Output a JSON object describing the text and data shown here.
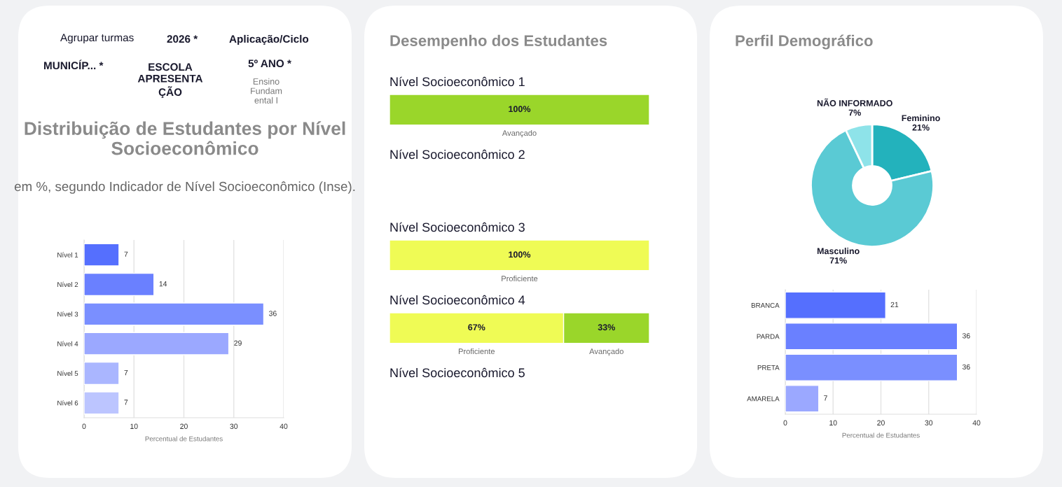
{
  "chart_data": [
    {
      "type": "bar",
      "orientation": "horizontal",
      "title": "Distribuição de Estudantes por Nível Socioeconômico",
      "subtitle": "em %, segundo Indicador de Nível Socioeconômico (Inse).",
      "xlabel": "Percentual de Estudantes",
      "categories": [
        "Nível 1",
        "Nível 2",
        "Nível 3",
        "Nível 4",
        "Nível 5",
        "Nível 6"
      ],
      "values": [
        7,
        14,
        36,
        29,
        7,
        7
      ],
      "colors": [
        "#556ffe",
        "#6a80ff",
        "#7a8fff",
        "#9ba8ff",
        "#aab6ff",
        "#bcc5ff"
      ],
      "xlim": [
        0,
        40
      ],
      "xticks": [
        0,
        10,
        20,
        30,
        40
      ],
      "grid": "x",
      "data_labels": true,
      "annotations": [
        "Agrupar turmas",
        "2026 *",
        "Aplicação/Ciclo",
        "MUNICÍP... *",
        "ESCOLA\nAPRESENTA\nÇÃO",
        "5º ANO *",
        "Ensino\nFundam\nental I"
      ]
    },
    {
      "type": "bar",
      "orientation": "horizontal",
      "stacked": true,
      "title": "Desempenho dos Estudantes",
      "categories": [
        "Nível Socioeconômico 1",
        "Nível Socioeconômico 2",
        "Nível Socioeconômico 3",
        "Nível Socioeconômico 4",
        "Nível Socioeconômico 5"
      ],
      "series": [
        {
          "name": "Proficiente",
          "color": "#effb55",
          "values": [
            null,
            null,
            100,
            67,
            null
          ],
          "value_labels": [
            null,
            null,
            "100%",
            "67%",
            null
          ]
        },
        {
          "name": "Avançado",
          "color": "#9ad62a",
          "values": [
            100,
            null,
            null,
            33,
            null
          ],
          "value_labels": [
            "100%",
            null,
            null,
            "33%",
            null
          ]
        }
      ],
      "xlim": [
        0,
        100
      ],
      "tick_labels": false
    },
    {
      "type": "donut",
      "title": "Perfil Demográfico",
      "categories": [
        "Feminino",
        "Masculino",
        "NÃO INFORMADO"
      ],
      "values": [
        21,
        71,
        7
      ],
      "value_labels": [
        "21%",
        "71%",
        "7%"
      ],
      "colors": [
        "#23b2bc",
        "#5acad4",
        "#8ee3e9"
      ]
    },
    {
      "type": "bar",
      "orientation": "horizontal",
      "xlabel": "Percentual de Estudantes",
      "categories": [
        "BRANCA",
        "PARDA",
        "PRETA",
        "AMARELA"
      ],
      "values": [
        21,
        36,
        36,
        7
      ],
      "colors": [
        "#556ffe",
        "#6a80ff",
        "#7a8fff",
        "#9ba8ff"
      ],
      "xlim": [
        0,
        40
      ],
      "xticks": [
        0,
        10,
        20,
        30,
        40
      ],
      "grid": "x",
      "data_labels": true
    }
  ]
}
